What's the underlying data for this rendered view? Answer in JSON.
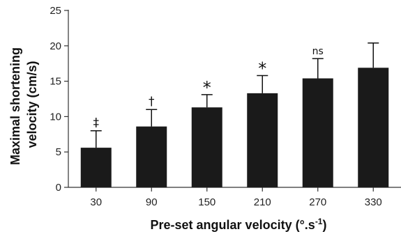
{
  "chart_data": {
    "type": "bar",
    "title": "",
    "xlabel": "Pre-set angular velocity (°.s",
    "xlabel_exponent": "-1",
    "xlabel_close": ")",
    "ylabel_line1": "Maximal shortening",
    "ylabel_line2": "velocity (cm/s)",
    "categories": [
      "30",
      "90",
      "150",
      "210",
      "270",
      "330"
    ],
    "values": [
      5.6,
      8.6,
      11.3,
      13.3,
      15.4,
      16.9
    ],
    "error_upper": [
      2.4,
      2.4,
      1.8,
      2.5,
      2.8,
      3.5
    ],
    "annotations": [
      "‡",
      "†",
      "*",
      "*",
      "ns",
      ""
    ],
    "ylim": [
      0,
      25
    ],
    "yticks": [
      0,
      5,
      10,
      15,
      20,
      25
    ],
    "bar_color": "#1a1a1a",
    "grid": false,
    "legend": "none"
  }
}
